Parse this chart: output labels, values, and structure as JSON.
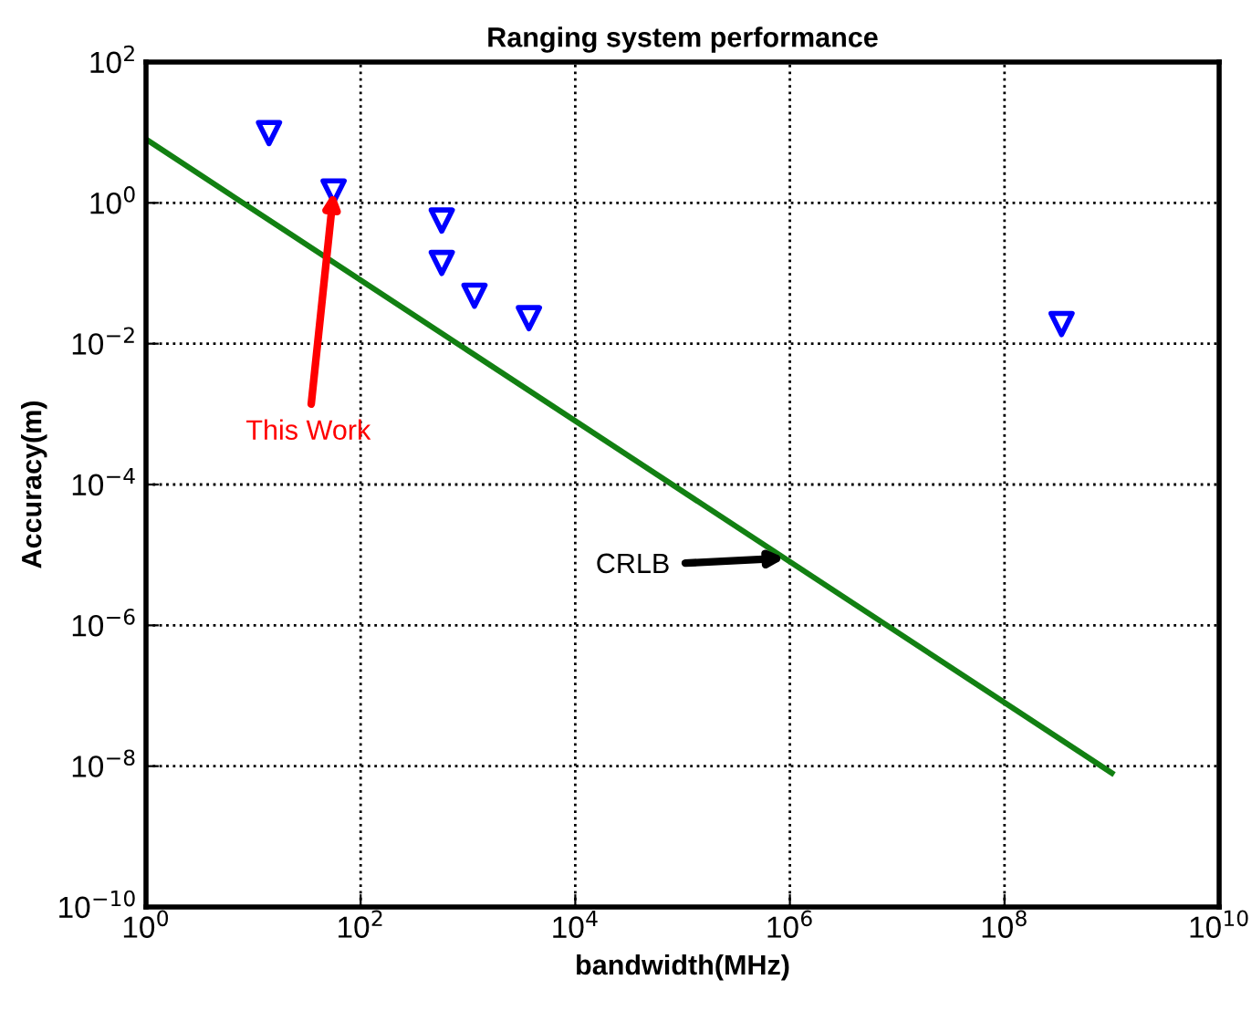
{
  "chart_data": {
    "type": "scatter",
    "title": "Ranging system performance",
    "xlabel": "bandwidth(MHz)",
    "ylabel": "Accuracy(m)",
    "log": "xy",
    "grid": true,
    "series": [
      {
        "marker": "triangle",
        "color": "#0000ff",
        "x": [
          14,
          56,
          570,
          570,
          1150,
          3700,
          340000000
        ],
        "values": [
          9.8,
          1.45,
          0.56,
          0.14,
          0.048,
          0.023,
          0.019
        ]
      },
      {
        "type": "line",
        "color": "#128012",
        "x": [
          1,
          1000000000
        ],
        "values": [
          8,
          8e-09
        ]
      }
    ],
    "annotations": [
      {
        "text": "This Work",
        "x": 56,
        "y": 1.45
      },
      {
        "text": "CRLB",
        "x": 900000,
        "y": 9e-06
      }
    ],
    "xlim": [
      1,
      10000000000
    ],
    "ylim": [
      1e-10,
      100
    ],
    "xticks": [
      {
        "value": 1,
        "label": "10$^{0}$"
      },
      {
        "value": 100,
        "label": "10$^{2}$"
      },
      {
        "value": 10000,
        "label": "10$^{4}$"
      },
      {
        "value": 1000000,
        "label": "10$^{6}$"
      },
      {
        "value": 100000000,
        "label": "10$^{8}$"
      },
      {
        "value": 10000000000,
        "label": "10$^{10}$"
      }
    ],
    "yticks": [
      {
        "value": 1e-10,
        "label": "10$^{−10}$"
      },
      {
        "value": 1e-08,
        "label": "10$^{−8}$"
      },
      {
        "value": 1e-06,
        "label": "10$^{−6}$"
      },
      {
        "value": 0.0001,
        "label": "10$^{−4}$"
      },
      {
        "value": 0.01,
        "label": "10$^{−2}$"
      },
      {
        "value": 1,
        "label": "10$^{0}$"
      },
      {
        "value": 100,
        "label": "10$^{2}$"
      }
    ]
  }
}
